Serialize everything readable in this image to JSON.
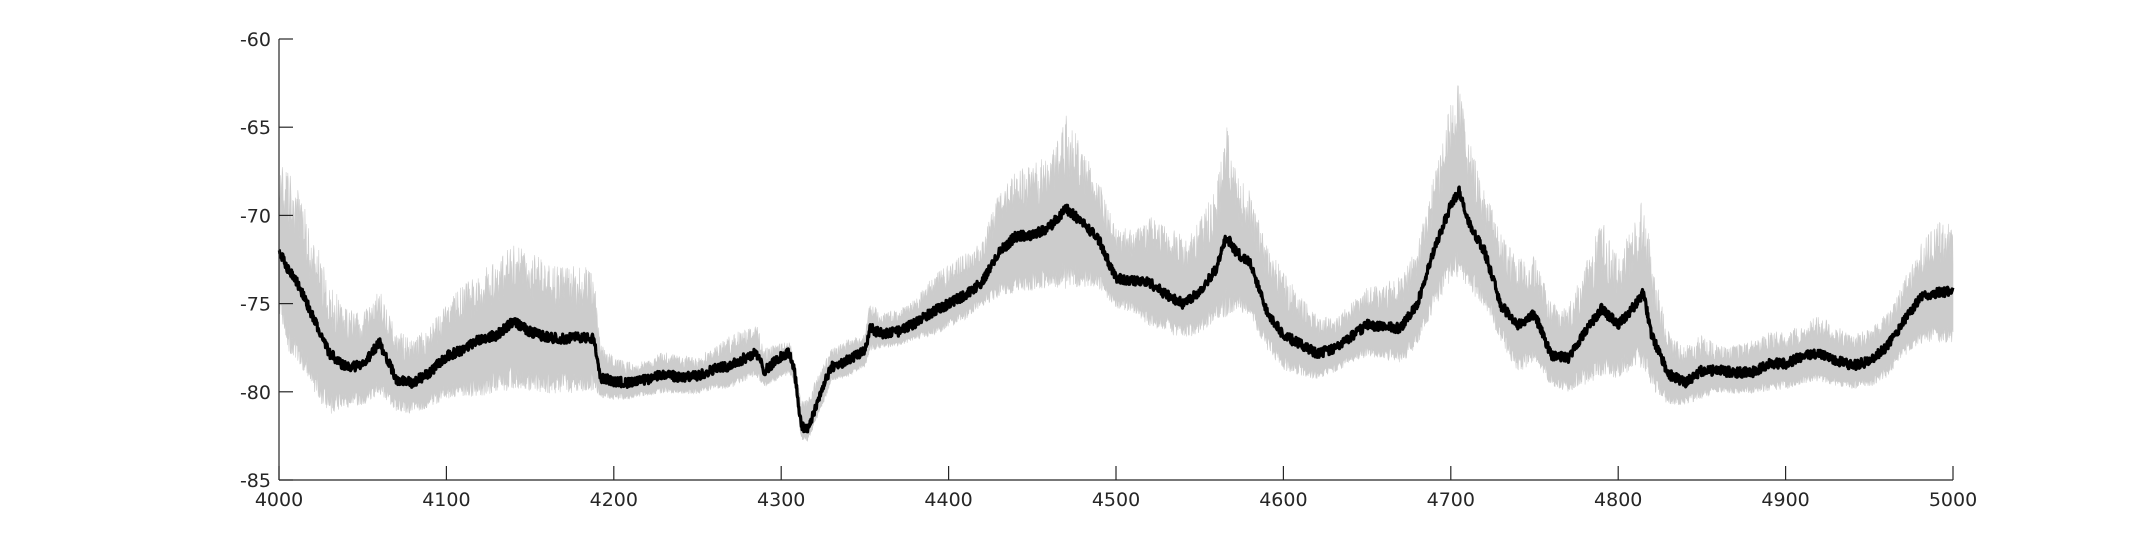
{
  "chart_data": {
    "type": "line",
    "title": "",
    "xlabel": "",
    "ylabel": "",
    "xlim": [
      4000,
      5000
    ],
    "ylim": [
      -85,
      -60
    ],
    "xticks": [
      4000,
      4100,
      4200,
      4300,
      4400,
      4500,
      4600,
      4700,
      4800,
      4900,
      5000
    ],
    "yticks": [
      -60,
      -65,
      -70,
      -75,
      -80,
      -85
    ],
    "xtick_labels": [
      "4000",
      "4100",
      "4200",
      "4300",
      "4400",
      "4500",
      "4600",
      "4700",
      "4800",
      "4900",
      "5000"
    ],
    "ytick_labels": [
      "-60",
      "-65",
      "-70",
      "-75",
      "-80",
      "-85"
    ],
    "grid": false,
    "box": false,
    "series": [
      {
        "role": "band",
        "color": "#cccccc",
        "x": [
          4000,
          4005,
          4012,
          4020,
          4030,
          4040,
          4050,
          4060,
          4070,
          4080,
          4090,
          4100,
          4110,
          4120,
          4130,
          4140,
          4150,
          4160,
          4170,
          4180,
          4188,
          4192,
          4200,
          4210,
          4220,
          4230,
          4240,
          4250,
          4260,
          4270,
          4280,
          4285,
          4290,
          4300,
          4305,
          4308,
          4312,
          4316,
          4320,
          4325,
          4330,
          4340,
          4350,
          4353,
          4360,
          4370,
          4380,
          4390,
          4400,
          4410,
          4420,
          4430,
          4440,
          4450,
          4460,
          4470,
          4480,
          4490,
          4500,
          4510,
          4520,
          4530,
          4540,
          4550,
          4560,
          4566,
          4572,
          4580,
          4590,
          4600,
          4610,
          4620,
          4630,
          4640,
          4650,
          4660,
          4670,
          4680,
          4690,
          4700,
          4705,
          4710,
          4720,
          4730,
          4740,
          4750,
          4760,
          4770,
          4780,
          4790,
          4800,
          4810,
          4815,
          4820,
          4830,
          4840,
          4850,
          4860,
          4870,
          4880,
          4890,
          4900,
          4910,
          4920,
          4930,
          4940,
          4950,
          4960,
          4970,
          4980,
          4990,
          5000
        ],
        "upper": [
          -69.0,
          -69.7,
          -71.0,
          -73.0,
          -75.5,
          -76.5,
          -76.8,
          -75.6,
          -77.6,
          -78.0,
          -77.3,
          -76.2,
          -75.4,
          -74.8,
          -74.2,
          -73.4,
          -73.9,
          -74.4,
          -74.6,
          -74.4,
          -74.8,
          -78.0,
          -78.6,
          -78.8,
          -78.7,
          -78.2,
          -78.5,
          -78.4,
          -78.0,
          -77.5,
          -77.0,
          -76.8,
          -78.0,
          -77.7,
          -77.5,
          -78.6,
          -81.0,
          -81.0,
          -80.0,
          -79.0,
          -78.0,
          -77.5,
          -77.2,
          -75.5,
          -76.0,
          -75.8,
          -75.3,
          -74.3,
          -73.6,
          -73.0,
          -72.4,
          -70.0,
          -69.0,
          -68.8,
          -68.3,
          -66.5,
          -68.0,
          -69.5,
          -71.8,
          -71.8,
          -71.5,
          -72.0,
          -72.5,
          -71.8,
          -70.0,
          -67.2,
          -69.5,
          -70.3,
          -73.0,
          -74.5,
          -75.6,
          -76.5,
          -76.5,
          -75.8,
          -75.0,
          -74.8,
          -74.6,
          -73.0,
          -69.5,
          -66.0,
          -65.0,
          -67.5,
          -70.0,
          -72.5,
          -74.0,
          -73.7,
          -76.0,
          -76.3,
          -74.5,
          -72.3,
          -74.0,
          -72.2,
          -71.0,
          -74.0,
          -77.5,
          -78.2,
          -77.6,
          -78.0,
          -78.0,
          -77.8,
          -77.4,
          -77.3,
          -77.0,
          -76.5,
          -77.0,
          -77.5,
          -77.2,
          -76.3,
          -74.8,
          -73.0,
          -72.0,
          -72.0
        ],
        "lower": [
          -74.5,
          -76.5,
          -77.5,
          -79.0,
          -80.5,
          -80.3,
          -80.2,
          -79.5,
          -80.6,
          -80.8,
          -80.4,
          -79.8,
          -79.6,
          -79.5,
          -79.2,
          -79.0,
          -79.1,
          -79.3,
          -79.3,
          -79.3,
          -79.2,
          -80.0,
          -80.2,
          -80.2,
          -80.0,
          -79.8,
          -79.9,
          -79.9,
          -79.6,
          -79.5,
          -79.0,
          -78.8,
          -79.5,
          -79.0,
          -78.8,
          -79.5,
          -82.5,
          -82.6,
          -81.6,
          -80.5,
          -79.2,
          -78.9,
          -78.4,
          -77.4,
          -77.3,
          -77.2,
          -76.8,
          -76.5,
          -76.0,
          -75.5,
          -74.8,
          -74.0,
          -73.6,
          -73.5,
          -73.3,
          -73.1,
          -73.2,
          -73.5,
          -74.8,
          -75.0,
          -75.6,
          -76.0,
          -76.4,
          -76.0,
          -75.2,
          -74.6,
          -74.5,
          -75.0,
          -77.0,
          -78.2,
          -78.6,
          -78.9,
          -78.6,
          -78.1,
          -77.6,
          -77.7,
          -77.9,
          -76.8,
          -74.5,
          -72.8,
          -72.3,
          -73.2,
          -74.5,
          -76.5,
          -78.3,
          -77.6,
          -79.2,
          -79.5,
          -78.9,
          -78.2,
          -78.5,
          -77.8,
          -77.6,
          -79.0,
          -80.3,
          -80.4,
          -80.0,
          -79.8,
          -79.8,
          -79.8,
          -79.6,
          -79.5,
          -79.2,
          -79.0,
          -79.3,
          -79.5,
          -79.4,
          -78.8,
          -77.6,
          -76.7,
          -76.5,
          -76.5
        ]
      },
      {
        "role": "mean",
        "color": "#000000",
        "x": [
          4000,
          4005,
          4012,
          4020,
          4030,
          4040,
          4050,
          4060,
          4070,
          4080,
          4090,
          4100,
          4110,
          4120,
          4130,
          4140,
          4150,
          4160,
          4170,
          4180,
          4188,
          4192,
          4200,
          4210,
          4220,
          4230,
          4240,
          4250,
          4260,
          4270,
          4280,
          4285,
          4290,
          4300,
          4305,
          4308,
          4312,
          4316,
          4320,
          4325,
          4330,
          4340,
          4350,
          4353,
          4360,
          4370,
          4380,
          4390,
          4400,
          4410,
          4420,
          4430,
          4440,
          4450,
          4460,
          4470,
          4480,
          4490,
          4500,
          4510,
          4520,
          4530,
          4540,
          4550,
          4560,
          4566,
          4572,
          4580,
          4590,
          4600,
          4610,
          4620,
          4630,
          4640,
          4650,
          4660,
          4670,
          4680,
          4690,
          4700,
          4705,
          4710,
          4720,
          4730,
          4740,
          4750,
          4760,
          4770,
          4780,
          4790,
          4800,
          4810,
          4815,
          4820,
          4830,
          4840,
          4850,
          4860,
          4870,
          4880,
          4890,
          4900,
          4910,
          4920,
          4930,
          4940,
          4950,
          4960,
          4970,
          4980,
          4990,
          5000
        ],
        "y": [
          -72.0,
          -73.0,
          -74.0,
          -75.7,
          -77.8,
          -78.6,
          -78.5,
          -77.2,
          -79.3,
          -79.5,
          -78.9,
          -78.0,
          -77.6,
          -77.0,
          -76.8,
          -76.0,
          -76.6,
          -76.9,
          -77.0,
          -76.9,
          -77.0,
          -79.2,
          -79.4,
          -79.5,
          -79.3,
          -79.0,
          -79.2,
          -79.1,
          -78.7,
          -78.5,
          -78.0,
          -77.8,
          -78.8,
          -78.0,
          -77.8,
          -78.8,
          -82.0,
          -82.1,
          -81.0,
          -79.7,
          -78.6,
          -78.2,
          -77.7,
          -76.4,
          -76.7,
          -76.6,
          -76.1,
          -75.5,
          -75.0,
          -74.5,
          -73.8,
          -72.1,
          -71.2,
          -71.1,
          -70.7,
          -69.6,
          -70.4,
          -71.4,
          -73.6,
          -73.7,
          -73.8,
          -74.5,
          -75.0,
          -74.3,
          -73.0,
          -71.2,
          -72.1,
          -72.7,
          -75.4,
          -76.8,
          -77.3,
          -77.8,
          -77.6,
          -76.9,
          -76.2,
          -76.3,
          -76.4,
          -75.0,
          -72.0,
          -69.4,
          -68.6,
          -70.3,
          -72.0,
          -75.1,
          -76.2,
          -75.6,
          -77.9,
          -78.1,
          -76.6,
          -75.3,
          -76.2,
          -75.1,
          -74.4,
          -76.8,
          -79.0,
          -79.5,
          -78.8,
          -78.8,
          -78.9,
          -78.9,
          -78.4,
          -78.4,
          -78.0,
          -77.8,
          -78.2,
          -78.5,
          -78.3,
          -77.5,
          -76.1,
          -74.7,
          -74.4,
          -74.3
        ]
      }
    ]
  }
}
